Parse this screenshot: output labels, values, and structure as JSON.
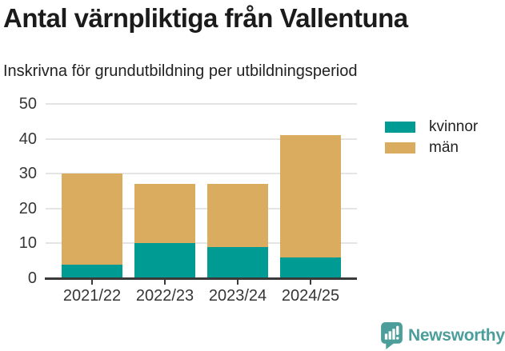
{
  "chart_data": {
    "type": "bar",
    "stacked": true,
    "title": "Antal värnpliktiga från Vallentuna",
    "subtitle": "Inskrivna för grundutbildning per utbildningsperiod",
    "categories": [
      "2021/22",
      "2022/23",
      "2023/24",
      "2024/25"
    ],
    "series": [
      {
        "name": "kvinnor",
        "color": "#009C94",
        "values": [
          4,
          10,
          9,
          6
        ]
      },
      {
        "name": "män",
        "color": "#DAAC5F",
        "values": [
          26,
          17,
          18,
          35
        ]
      }
    ],
    "stacked_totals": [
      30,
      27,
      27,
      41
    ],
    "xlabel": "",
    "ylabel": "",
    "ylim": [
      0,
      50
    ],
    "yticks": [
      0,
      10,
      20,
      30,
      40,
      50
    ],
    "grid": true,
    "legend_position": "top-right"
  },
  "footer": {
    "brand": "Newsworthy",
    "logo_icon": "newsworthy-speech-bubble-chart-icon",
    "brand_color": "#4C9E9A"
  },
  "colors": {
    "background": "#FFFFFF",
    "title": "#1B1B1B",
    "subtitle": "#222222",
    "axis_line": "#3A3A3A",
    "tick_text": "#363636",
    "gridline": "#E4E4E4",
    "legend_text": "#222222"
  }
}
